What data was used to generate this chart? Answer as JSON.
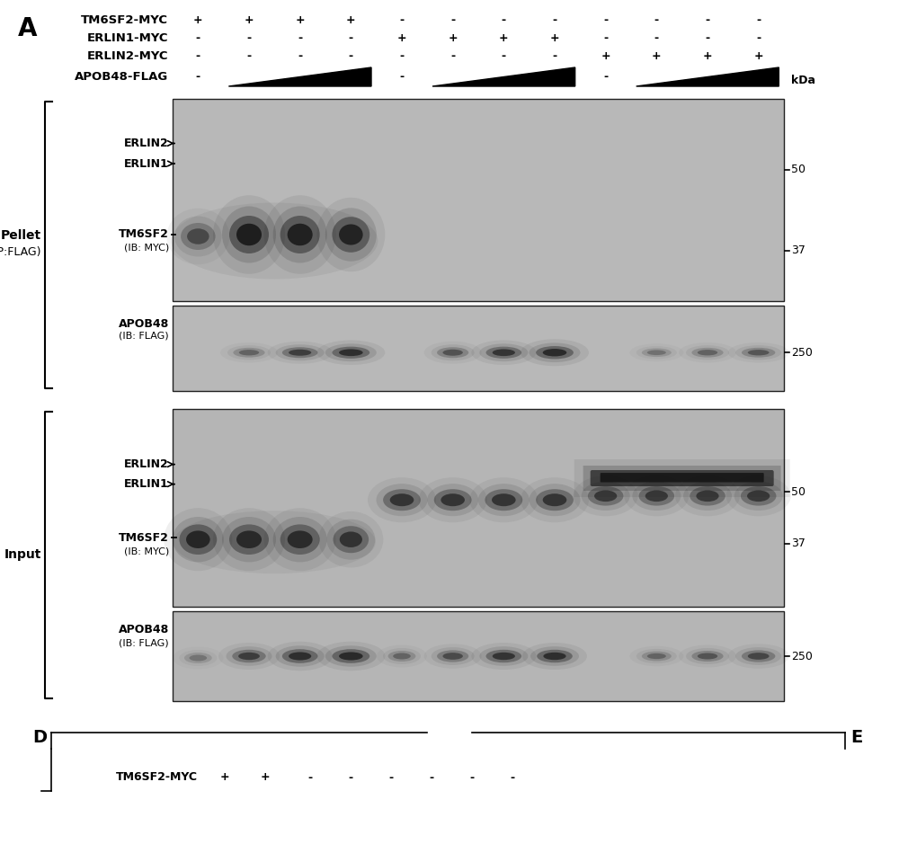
{
  "bg_color": "#ffffff",
  "gel_color": "#b0b0b0",
  "gel_color_light": "#c0c0c0",
  "panel_A_label": "A",
  "header_rows": [
    "TM6SF2-MYC",
    "ERLIN1-MYC",
    "ERLIN2-MYC",
    "APOB48-FLAG"
  ],
  "header_vals_tm6": [
    "+",
    "+",
    "+",
    "+",
    "-",
    "-",
    "-",
    "-",
    "-",
    "-",
    "-",
    "-"
  ],
  "header_vals_erlin1": [
    "-",
    "-",
    "-",
    "-",
    "+",
    "+",
    "+",
    "+",
    "-",
    "-",
    "-",
    "-"
  ],
  "header_vals_erlin2": [
    "-",
    "-",
    "-",
    "-",
    "-",
    "-",
    "-",
    "-",
    "+",
    "+",
    "+",
    "+"
  ],
  "header_vals_apob": [
    "-",
    "g",
    "g",
    "g",
    "-",
    "g",
    "g",
    "g",
    "-",
    "g",
    "g",
    "g"
  ],
  "section1_label1": "Pellet",
  "section1_label2": "(IP:FLAG)",
  "section2_label": "Input",
  "panel_D_label": "D",
  "panel_E_label": "E",
  "bottom_row_label": "TM6SF2-MYC",
  "bottom_row_vals": [
    "+",
    "+",
    "-",
    "-",
    "-",
    "-",
    "-",
    "-"
  ],
  "kda_50": "50",
  "kda_37": "37",
  "kda_250": "250",
  "kda_label": "kDa",
  "pellet_myc_labels": [
    "ERLIN2",
    "ERLIN1",
    "TM6SF2",
    "(IB: MYC)"
  ],
  "pellet_flag_labels": [
    "APOB48",
    "(IB: FLAG)"
  ],
  "input_myc_labels": [
    "ERLIN2",
    "ERLIN1",
    "TM6SF2",
    "(IB: MYC)"
  ],
  "input_flag_labels": [
    "APOB48",
    "(IB: FLAG)"
  ]
}
